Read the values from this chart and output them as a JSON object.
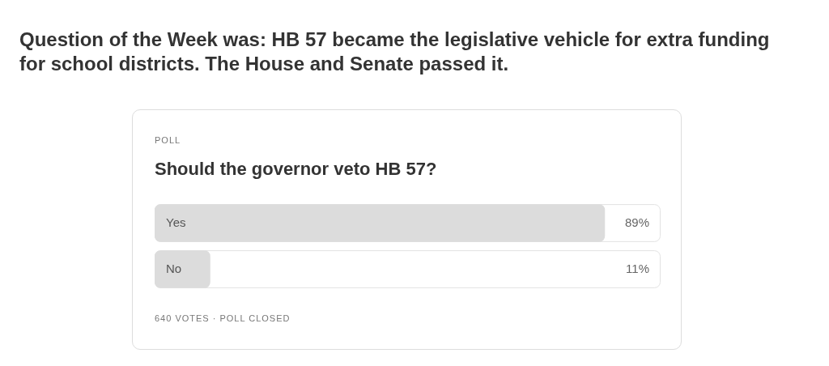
{
  "chart_data": {
    "type": "bar",
    "orientation": "horizontal",
    "title": "Question of the Week was: HB 57 became the legislative vehicle for extra funding for school districts. The House and Senate passed it.",
    "subtitle": "Should the governor veto HB 57?",
    "annotations": [
      "POLL",
      "640 VOTES · POLL CLOSED"
    ],
    "categories": [
      "Yes",
      "No"
    ],
    "values": [
      89,
      11
    ],
    "value_labels": [
      "89%",
      "11%"
    ],
    "color": "#dcdcdc",
    "xlim": [
      0,
      100
    ],
    "tick_labels": false,
    "legend": false
  }
}
